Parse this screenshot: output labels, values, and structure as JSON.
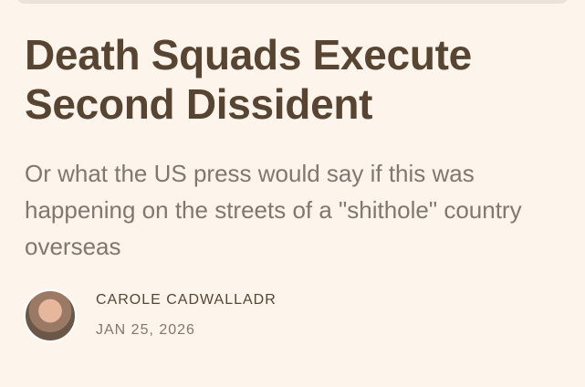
{
  "article": {
    "title": "Death Squads Execute Second Dissident",
    "subtitle": "Or what the US press would say if this was happening on the streets of a \"shithole\" country overseas",
    "author": "CAROLE CADWALLADR",
    "date": "JAN 25, 2026"
  }
}
